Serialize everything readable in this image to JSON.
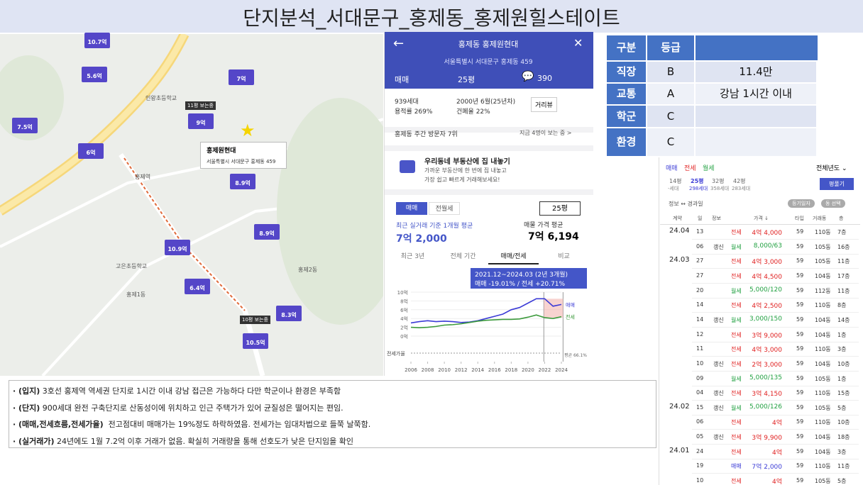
{
  "title": "단지분석_서대문구_홍제동_홍제원힐스테이트",
  "map": {
    "markers": [
      "10.7억",
      "5.6억",
      "7억",
      "7.5억",
      "9억",
      "6억",
      "8.9억",
      "8.9억",
      "10.9억",
      "6.4억",
      "10.5억",
      "8.3억"
    ],
    "viewing": [
      "11평 보는중",
      "10평 보는중"
    ],
    "places": [
      "홍제2동",
      "홍제1동",
      "인왕초등학교",
      "고은초등학교",
      "홍제역"
    ],
    "popup": {
      "name": "홍제원현대",
      "address": "서울특별시 서대문구 홍제동 459"
    }
  },
  "app": {
    "header": {
      "title": "홍제동 홍제원현대",
      "address": "서울특별시 서대문구 홍제동 459",
      "trade": "매매",
      "size": "25평",
      "comments": "390"
    },
    "info": {
      "households": "939세대",
      "far": "용적률 269%",
      "built": "2000년 6월(25년차)",
      "bcr": "건폐율 22%",
      "streetview": "거리뷰"
    },
    "visitors": "홍제동 주간 방문자 7위",
    "watching": "지금 4명이 보는 중 >",
    "ad": {
      "title": "우리동네 부동산에 집 내놓기",
      "line1": "가까운 부동산에 한 번에 집 내놓고",
      "line2": "가장 쉽고 빠르게 거래해보세요!"
    },
    "tabs": [
      "매매",
      "전월세"
    ],
    "size_select": "25평",
    "recent_label": "최근 실거래 기준 1개월 평균",
    "recent_price": "7억 2,000",
    "listing_label": "매물 가격 평균",
    "listing_price": "7억 6,194",
    "period_tabs": [
      "최근 3년",
      "전체 기간",
      "매매/전세",
      "비교"
    ],
    "tooltip": {
      "range": "2021.12~2024.03 (2년 3개월)",
      "change": "매매 -19.01% / 전세 +20.71%"
    },
    "chart": {
      "type": "line",
      "x": [
        2006,
        2007,
        2008,
        2009,
        2010,
        2011,
        2012,
        2013,
        2014,
        2015,
        2016,
        2017,
        2018,
        2019,
        2020,
        2021,
        2022,
        2023,
        2024
      ],
      "series": [
        {
          "name": "매매",
          "color": "#3b3bd6",
          "values": [
            3,
            3.3,
            3.5,
            3.3,
            3.4,
            3.3,
            3.1,
            3.2,
            3.5,
            4,
            4.5,
            5,
            6,
            6.5,
            7.5,
            8.5,
            8.5,
            6.8,
            7.2
          ]
        },
        {
          "name": "전세",
          "color": "#3c9a3c",
          "values": [
            2,
            1.9,
            2,
            2.2,
            2.5,
            2.6,
            2.8,
            3.1,
            3.4,
            3.6,
            3.7,
            3.8,
            3.8,
            3.9,
            4.3,
            4.8,
            4.2,
            4,
            4.4
          ]
        }
      ],
      "ylim": [
        0,
        10
      ],
      "yticks": [
        {
          "value": 0,
          "label": "0억"
        },
        {
          "value": 2,
          "label": "2억"
        },
        {
          "value": 4,
          "label": "4억"
        },
        {
          "value": 6,
          "label": "6억"
        },
        {
          "value": 8,
          "label": "8억"
        },
        {
          "value": 10,
          "label": "10억"
        }
      ],
      "xlim": [
        2006,
        2024
      ],
      "xticks": [
        2006,
        2008,
        2010,
        2012,
        2014,
        2016,
        2018,
        2020,
        2022,
        2024
      ],
      "ratio_label": "전세가율",
      "ratio_avg": "평균 66.1%"
    }
  },
  "grades": {
    "header": [
      "구분",
      "등급"
    ],
    "rows": [
      [
        "직장",
        "B",
        "11.4만"
      ],
      [
        "교통",
        "A",
        "강남 1시간 이내"
      ],
      [
        "학군",
        "C"
      ],
      [
        "환경",
        "C"
      ]
    ]
  },
  "deals": {
    "tabs": [
      "매매",
      "전세",
      "월세"
    ],
    "year": "전체년도 ⌄",
    "sizes": [
      {
        "size": "14평",
        "count": "-세대"
      },
      {
        "size": "25평",
        "count": "298세대"
      },
      {
        "size": "32평",
        "count": "358세대"
      },
      {
        "size": "42평",
        "count": "283세대"
      }
    ],
    "expand": "평풀기",
    "sort": "정보 ↔ 경과일",
    "filters": [
      "등기일자",
      "동 선택"
    ],
    "columns": [
      "계약",
      "일",
      "정보",
      "가격 ↓",
      "타입",
      "거래동",
      "층"
    ],
    "rows": [
      {
        "month": "24.04",
        "day": "13",
        "kind": "전세",
        "price": "4억 4,000",
        "type": "59",
        "dong": "110동",
        "floor": "7층"
      },
      {
        "day": "06",
        "info": "갱신",
        "kind": "월세",
        "price": "8,000/63",
        "type": "59",
        "dong": "105동",
        "floor": "16층"
      },
      {
        "month": "24.03",
        "day": "27",
        "kind": "전세",
        "price": "4억 3,000",
        "type": "59",
        "dong": "105동",
        "floor": "11층"
      },
      {
        "day": "27",
        "kind": "전세",
        "price": "4억 4,500",
        "type": "59",
        "dong": "104동",
        "floor": "17층"
      },
      {
        "day": "20",
        "kind": "월세",
        "price": "5,000/120",
        "type": "59",
        "dong": "112동",
        "floor": "11층"
      },
      {
        "day": "14",
        "kind": "전세",
        "price": "4억 2,500",
        "type": "59",
        "dong": "110동",
        "floor": "8층"
      },
      {
        "day": "14",
        "info": "갱신",
        "kind": "월세",
        "price": "3,000/150",
        "type": "59",
        "dong": "104동",
        "floor": "14층"
      },
      {
        "day": "12",
        "kind": "전세",
        "price": "3억 9,000",
        "type": "59",
        "dong": "104동",
        "floor": "1층"
      },
      {
        "day": "11",
        "kind": "전세",
        "price": "4억 3,000",
        "type": "59",
        "dong": "110동",
        "floor": "3층"
      },
      {
        "day": "10",
        "info": "갱신",
        "kind": "전세",
        "price": "2억 3,000",
        "type": "59",
        "dong": "104동",
        "floor": "10층"
      },
      {
        "day": "09",
        "kind": "월세",
        "price": "5,000/135",
        "type": "59",
        "dong": "105동",
        "floor": "1층"
      },
      {
        "day": "04",
        "info": "갱신",
        "kind": "전세",
        "price": "3억 4,150",
        "type": "59",
        "dong": "110동",
        "floor": "15층"
      },
      {
        "month": "24.02",
        "day": "15",
        "info": "갱신",
        "kind": "월세",
        "price": "5,000/126",
        "type": "59",
        "dong": "105동",
        "floor": "5층"
      },
      {
        "day": "06",
        "kind": "전세",
        "price": "4억",
        "type": "59",
        "dong": "110동",
        "floor": "10층"
      },
      {
        "day": "05",
        "info": "갱신",
        "kind": "전세",
        "price": "3억 9,900",
        "type": "59",
        "dong": "104동",
        "floor": "18층"
      },
      {
        "month": "24.01",
        "day": "24",
        "kind": "전세",
        "price": "4억",
        "type": "59",
        "dong": "104동",
        "floor": "3층"
      },
      {
        "day": "19",
        "kind": "매매",
        "price": "7억 2,000",
        "type": "59",
        "dong": "110동",
        "floor": "11층"
      },
      {
        "day": "10",
        "kind": "전세",
        "price": "4억",
        "type": "59",
        "dong": "105동",
        "floor": "5층"
      }
    ]
  },
  "notes": [
    {
      "key": "· (입지)",
      "text": " 3호선 홍제역 역세권 단지로 1시간 이내 강남 접근은 가능하다 다만 학군이나 환경은 부족함"
    },
    {
      "key": "· (단지)",
      "text": " 900세대 완전 구축단지로 산동성이에 위치하고 인근 주택가가 있어 균질성은 떨어지는 편임."
    },
    {
      "key": "· (매매,전세흐름,전세가율)",
      "text": "  전고점대비 매매가는 19%정도 하락하였음. 전세가는 임대차법으로 들쭉 날쭉함."
    },
    {
      "key": "· (실거래가)",
      "text": " 24년에도 1월 7.2억 이후 거래가 없음. 확실히 거래량을 통해 선호도가 낮은 단지임을 확인"
    }
  ]
}
